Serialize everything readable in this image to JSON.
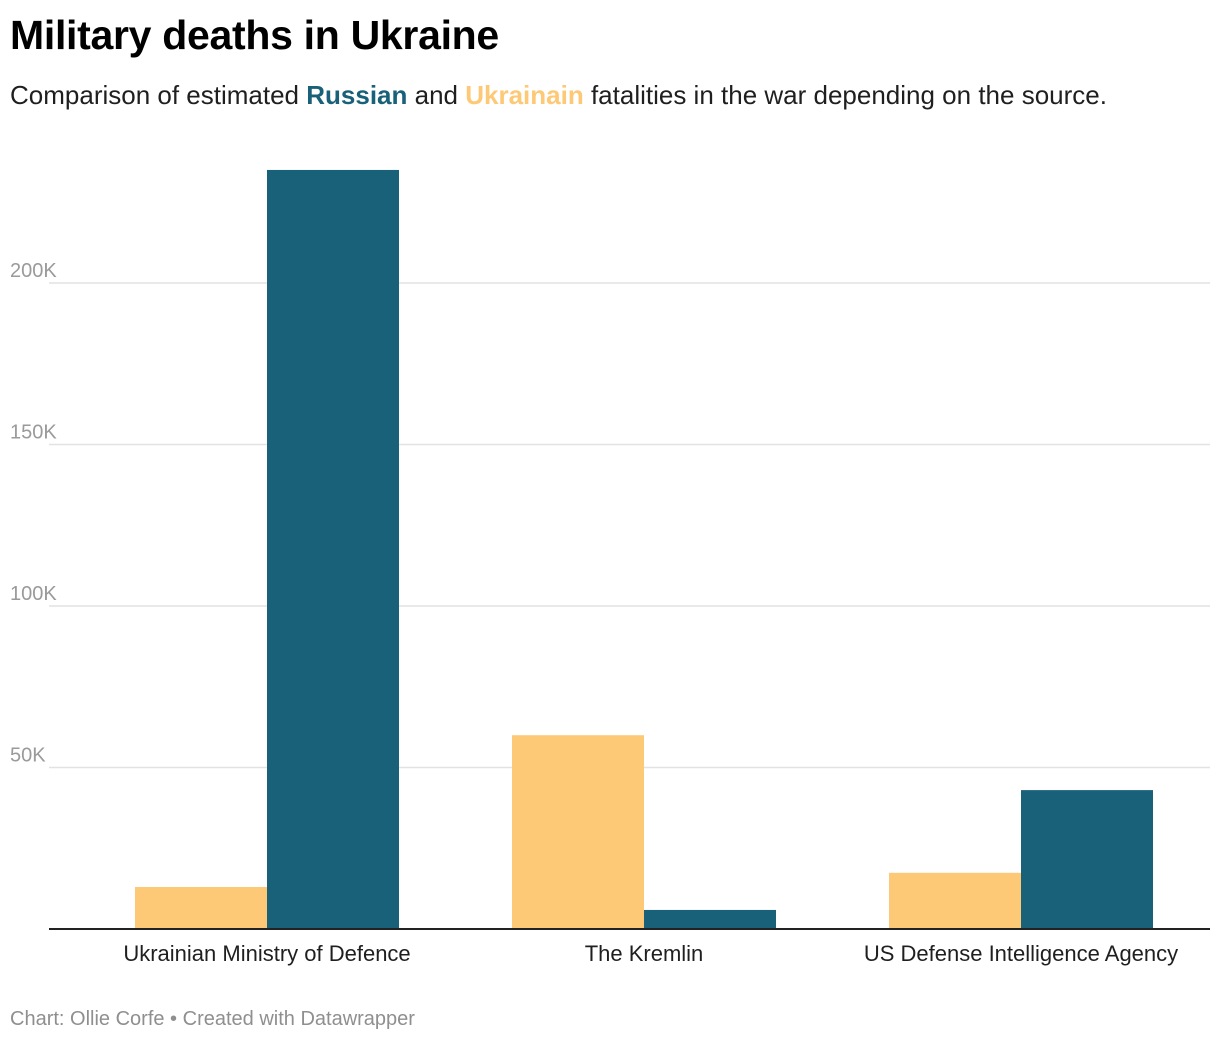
{
  "title": "Military deaths in Ukraine",
  "subtitle": {
    "before": "Comparison of estimated ",
    "russian": "Russian",
    "middle": " and ",
    "ukrainian": "Ukrainain",
    "after": " fatalities in the war depending on the source."
  },
  "colors": {
    "russian": "#186179",
    "ukrainian": "#fdc976",
    "gridline": "#e2e2e2",
    "axis": "#222222"
  },
  "footer": {
    "credit": "Chart: Ollie Corfe",
    "separator": " • ",
    "tool": "Created with Datawrapper"
  },
  "chart_data": {
    "type": "bar",
    "categories": [
      "Ukrainian Ministry of Defence",
      "The Kremlin",
      "US Defense Intelligence Agency"
    ],
    "series": [
      {
        "name": "Ukrainain",
        "color": "#fdc976",
        "values": [
          13000,
          60000,
          17400
        ]
      },
      {
        "name": "Russian",
        "color": "#186179",
        "values": [
          235000,
          5900,
          43000
        ]
      }
    ],
    "yticks": [
      50000,
      100000,
      150000,
      200000
    ],
    "ytick_labels": [
      "50K",
      "100K",
      "150K",
      "200K"
    ],
    "ylim": [
      0,
      235000
    ],
    "grid": true,
    "title": "Military deaths in Ukraine",
    "xlabel": "",
    "ylabel": ""
  }
}
